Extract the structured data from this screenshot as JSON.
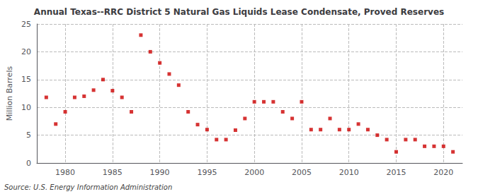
{
  "chart_data": {
    "type": "scatter",
    "title": "Annual Texas--RRC District 5 Natural Gas Liquids Lease Condensate, Proved Reserves",
    "ylabel": "Million Barrels",
    "annotation": "Source: U.S. Energy Information Administration",
    "color": "#cc0000",
    "marker": "square",
    "x": [
      1978,
      1979,
      1980,
      1981,
      1982,
      1983,
      1984,
      1985,
      1986,
      1987,
      1988,
      1989,
      1990,
      1991,
      1992,
      1993,
      1994,
      1995,
      1996,
      1997,
      1998,
      1999,
      2000,
      2001,
      2002,
      2003,
      2004,
      2005,
      2006,
      2007,
      2008,
      2009,
      2010,
      2011,
      2012,
      2013,
      2014,
      2015,
      2016,
      2017,
      2018,
      2019,
      2020,
      2021
    ],
    "values": [
      11.8,
      7.0,
      9.2,
      11.8,
      12.0,
      13.1,
      15.0,
      13.0,
      11.8,
      9.2,
      23.0,
      20.0,
      18.0,
      16.0,
      14.0,
      9.2,
      6.9,
      6.0,
      4.2,
      4.2,
      5.9,
      8.0,
      11.0,
      11.0,
      11.0,
      9.2,
      8.0,
      11.0,
      6.0,
      6.0,
      8.0,
      6.0,
      6.0,
      7.0,
      6.0,
      5.0,
      4.2,
      2.0,
      4.2,
      4.2,
      3.0,
      3.0,
      3.0,
      2.0
    ],
    "xlim": [
      1977,
      2022
    ],
    "xticks": [
      1980,
      1985,
      1990,
      1995,
      2000,
      2005,
      2010,
      2015,
      2020
    ],
    "ylim": [
      0,
      25
    ],
    "yticks": [
      0,
      5,
      10,
      15,
      20,
      25
    ],
    "grid": true
  }
}
